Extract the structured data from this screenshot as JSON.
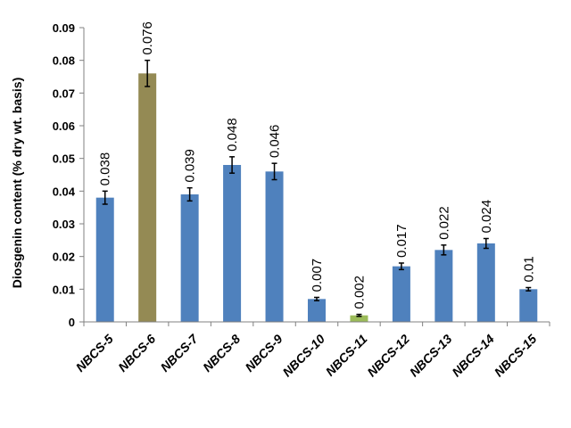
{
  "chart_data": {
    "type": "bar",
    "ylabel": "Diosgenin content (% dry wt. basis)",
    "ylim": [
      0,
      0.09
    ],
    "yticks": [
      "0",
      "0.01",
      "0.02",
      "0.03",
      "0.04",
      "0.05",
      "0.06",
      "0.07",
      "0.08",
      "0.09"
    ],
    "categories": [
      "NBCS-5",
      "NBCS-6",
      "NBCS-7",
      "NBCS-8",
      "NBCS-9",
      "NBCS-10",
      "NBCS-11",
      "NBCS-12",
      "NBCS-13",
      "NBCS-14",
      "NBCS-15"
    ],
    "values": [
      0.038,
      0.076,
      0.039,
      0.048,
      0.046,
      0.007,
      0.002,
      0.017,
      0.022,
      0.024,
      0.01
    ],
    "data_labels": [
      "0.038",
      "0.076",
      "0.039",
      "0.048",
      "0.046",
      "0.007",
      "0.002",
      "0.017",
      "0.022",
      "0.024",
      "0.01"
    ],
    "errors": [
      0.002,
      0.004,
      0.002,
      0.0025,
      0.0025,
      0.0005,
      0.0003,
      0.001,
      0.0015,
      0.0015,
      0.0005
    ],
    "bar_colors": [
      "#4f81bd",
      "#948a54",
      "#4f81bd",
      "#4f81bd",
      "#4f81bd",
      "#4f81bd",
      "#9bbb59",
      "#4f81bd",
      "#4f81bd",
      "#4f81bd",
      "#4f81bd"
    ],
    "grid": false,
    "legend": "none"
  }
}
